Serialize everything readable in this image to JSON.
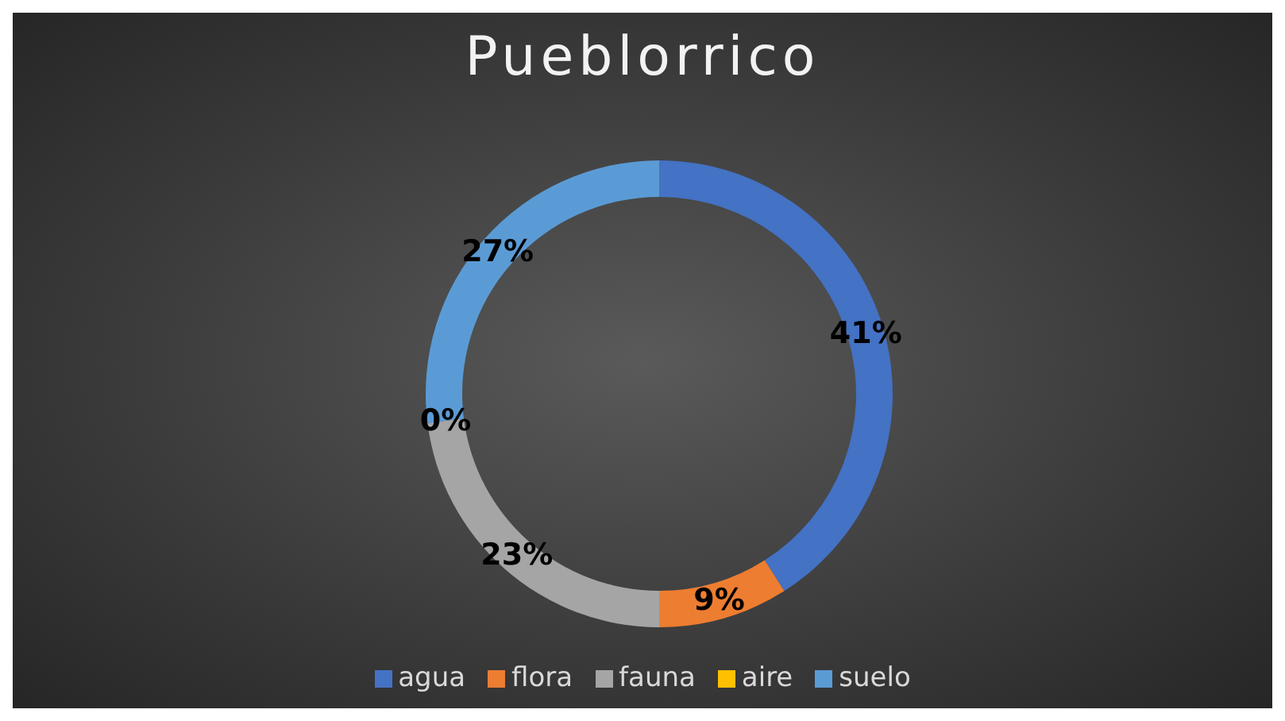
{
  "chart_data": {
    "type": "donut",
    "title": "Pueblorrico",
    "categories": [
      "agua",
      "flora",
      "fauna",
      "aire",
      "suelo"
    ],
    "values": [
      41,
      9,
      23,
      0,
      27
    ],
    "value_labels": [
      "41%",
      "9%",
      "23%",
      "0%",
      "27%"
    ],
    "colors": [
      "#4472c4",
      "#ed7d31",
      "#a5a5a5",
      "#ffc000",
      "#5b9bd5"
    ],
    "legend": "bottom"
  }
}
